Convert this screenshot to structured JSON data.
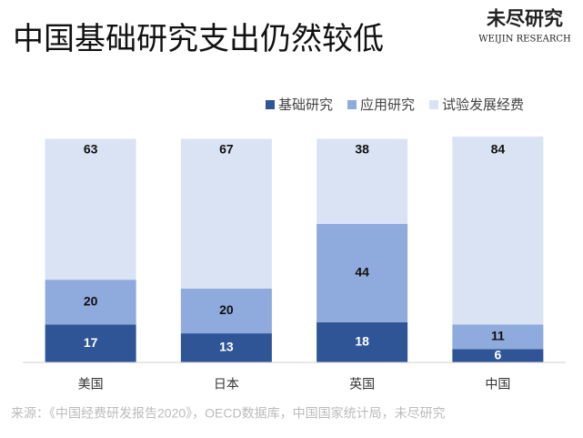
{
  "chart_data": {
    "type": "stacked_bar",
    "title": "中国基础研究支出仍然较低",
    "logo": {
      "name": "未尽研究",
      "subtitle": "WEIJIN RESEARCH"
    },
    "categories": [
      "美国",
      "日本",
      "英国",
      "中国"
    ],
    "series": [
      {
        "name": "基础研究",
        "color": "#2f5597",
        "values": [
          17,
          13,
          18,
          6
        ]
      },
      {
        "name": "应用研究",
        "color": "#8faadc",
        "values": [
          20,
          20,
          44,
          11
        ]
      },
      {
        "name": "试验发展经费",
        "color": "#dae3f3",
        "values": [
          63,
          67,
          38,
          84
        ]
      }
    ],
    "source": "来源：《中国经费研发报告2020》，OECD数据库，中国国家统计局，未尽研究",
    "legend": "top-right"
  }
}
